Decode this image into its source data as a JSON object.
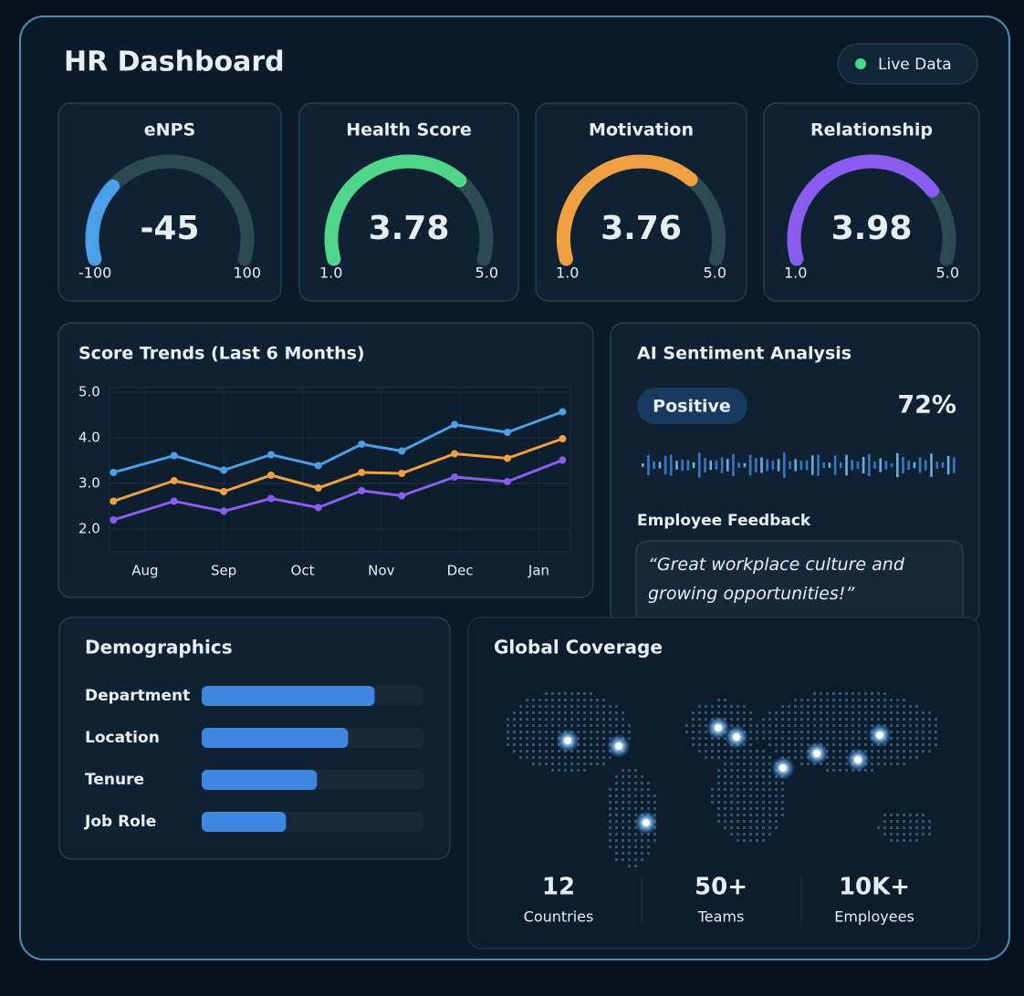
{
  "header": {
    "title": "HR Dashboard",
    "badge": "Live Data"
  },
  "gauges": [
    {
      "title": "eNPS",
      "value": -45,
      "min": -100,
      "max": 100,
      "color": "#4a9fe8"
    },
    {
      "title": "Health Score",
      "value": 3.78,
      "min": {
        "value": 1,
        "label": "1.0"
      },
      "max": {
        "value": 5,
        "label": "5.0"
      },
      "color": "#4fd68a"
    },
    {
      "title": "Motivation",
      "value": 3.76,
      "min": {
        "value": 1,
        "label": "1.0"
      },
      "max": {
        "value": 5,
        "label": "5.0"
      },
      "color": "#f0a040"
    },
    {
      "title": "Relationship",
      "value": 3.98,
      "min": {
        "value": 1,
        "label": "1.0"
      },
      "max": {
        "value": 5,
        "label": "5.0"
      },
      "color": "#8a5cf0"
    }
  ],
  "trends": {
    "type": "line",
    "title": "Score Trends  (Last 6 Months)",
    "x": [
      -0.4,
      0.37,
      1.0,
      1.6,
      2.2,
      2.75,
      3.26,
      3.93,
      4.6,
      5.3
    ],
    "xlim": [
      -0.45,
      5.4
    ],
    "xticks": [
      {
        "value": 0,
        "label": "Aug"
      },
      {
        "value": 1,
        "label": "Sep"
      },
      {
        "value": 2,
        "label": "Oct"
      },
      {
        "value": 3,
        "label": "Nov"
      },
      {
        "value": 4,
        "label": "Dec"
      },
      {
        "value": 5,
        "label": "Jan"
      }
    ],
    "ylim": [
      1.5,
      5.1
    ],
    "yticks": [
      {
        "value": 2,
        "label": "2.0"
      },
      {
        "value": 3,
        "label": "3.0"
      },
      {
        "value": 4,
        "label": "4.0"
      },
      {
        "value": 5,
        "label": "5.0"
      }
    ],
    "grid": true,
    "series": [
      {
        "color": "#4a9fe8",
        "values": [
          3.24,
          3.61,
          3.29,
          3.63,
          3.39,
          3.86,
          3.71,
          4.29,
          4.12,
          4.57
        ]
      },
      {
        "color": "#f0a040",
        "values": [
          2.61,
          3.06,
          2.82,
          3.18,
          2.9,
          3.24,
          3.22,
          3.65,
          3.55,
          3.98
        ]
      },
      {
        "color": "#8a5cf0",
        "values": [
          2.2,
          2.61,
          2.39,
          2.67,
          2.47,
          2.84,
          2.73,
          3.14,
          3.04,
          3.51
        ]
      }
    ]
  },
  "sentiment": {
    "title": "AI Sentiment Analysis",
    "label": "Positive",
    "value": 72,
    "value_label": "72%",
    "feedback_title": "Employee Feedback",
    "feedback": "“Great workplace culture and growing opportunities!”"
  },
  "demographics": {
    "type": "bar",
    "title": "Demographics",
    "categories": [
      "Department",
      "Location",
      "Tenure",
      "Job Role"
    ],
    "values": [
      78,
      66,
      52,
      38
    ],
    "xlim": [
      0,
      100
    ],
    "color": "#3f86e0"
  },
  "coverage": {
    "title": "Global Coverage",
    "stats": [
      {
        "value": "12",
        "label": "Countries"
      },
      {
        "value": "50+",
        "label": "Teams"
      },
      {
        "value": "10K+",
        "label": "Employees"
      }
    ]
  }
}
